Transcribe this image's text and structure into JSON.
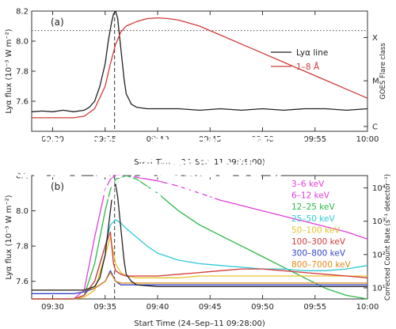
{
  "chart_data": [
    {
      "type": "line",
      "panel_label": "(a)",
      "ylabel": "Lyα flux (10⁻³ W m⁻²)",
      "y2label": "GOES Flare class",
      "xlabel": "Start Time (24–Sep–11 09:28:00)",
      "x_ticks": [
        "09:30",
        "09:35",
        "09:40",
        "09:45",
        "09:50",
        "09:55",
        "10:00"
      ],
      "xlim": [
        0,
        32
      ],
      "ylim": [
        7.4,
        8.2
      ],
      "y_ticks": [
        7.6,
        7.8,
        8.0,
        8.2
      ],
      "y2_ticks": [
        "X",
        "M",
        "C"
      ],
      "dotted_hline": 8.07,
      "dashed_vline_x": 7.9,
      "legend": [
        {
          "label": "Lyα line",
          "color": "#222222"
        },
        {
          "label": "1–8 Å",
          "color": "#d23a3a"
        }
      ],
      "series": [
        {
          "name": "Lyα line",
          "color": "#222222",
          "x": [
            0,
            1,
            2,
            3,
            4,
            5,
            5.5,
            6,
            6.5,
            7,
            7.3,
            7.6,
            7.8,
            8,
            8.2,
            8.5,
            8.8,
            9,
            9.5,
            10,
            11,
            12,
            14,
            16,
            18,
            20,
            22,
            24,
            26,
            28,
            30,
            32
          ],
          "y": [
            7.53,
            7.535,
            7.53,
            7.54,
            7.53,
            7.54,
            7.56,
            7.6,
            7.7,
            7.85,
            8.0,
            8.12,
            8.18,
            8.2,
            8.15,
            7.95,
            7.75,
            7.65,
            7.58,
            7.56,
            7.55,
            7.55,
            7.55,
            7.54,
            7.55,
            7.54,
            7.55,
            7.54,
            7.55,
            7.55,
            7.54,
            7.55
          ]
        },
        {
          "name": "1–8 Å",
          "color": "#d23a3a",
          "x": [
            0,
            2,
            4,
            5,
            6,
            7,
            7.5,
            8,
            8.5,
            9,
            10,
            11,
            12,
            13,
            14,
            16,
            18,
            20,
            22,
            24,
            26,
            28,
            30,
            32
          ],
          "y": [
            7.49,
            7.49,
            7.49,
            7.5,
            7.55,
            7.7,
            7.85,
            7.98,
            8.06,
            8.1,
            8.13,
            8.15,
            8.155,
            8.15,
            8.14,
            8.1,
            8.04,
            7.98,
            7.92,
            7.86,
            7.8,
            7.74,
            7.68,
            7.62
          ]
        }
      ]
    },
    {
      "type": "line",
      "panel_label": "(b)",
      "ylabel": "Lyα flux (10⁻³ W m⁻²)",
      "y2label": "Corrected Count Rate (s⁻¹ detector⁻¹)",
      "xlabel": "Start Time (24–Sep–11 09:28:00)",
      "x_ticks": [
        "09:30",
        "09:35",
        "09:40",
        "09:45",
        "09:50",
        "09:55",
        "10:00"
      ],
      "xlim": [
        0,
        32
      ],
      "ylim": [
        7.5,
        8.2
      ],
      "y_ticks": [
        7.6,
        7.8,
        8.0,
        8.2
      ],
      "y2_ticks": [
        "10⁴",
        "10³",
        "10²",
        "10¹"
      ],
      "dashed_vline_x": 7.9,
      "legend": [
        {
          "label": "3–6 keV",
          "color": "#e040d8"
        },
        {
          "label": "6–12 keV",
          "color": "#e040d8"
        },
        {
          "label": "12–25 keV",
          "color": "#2bb84a"
        },
        {
          "label": "25–50 keV",
          "color": "#2ec9d6"
        },
        {
          "label": "50–100 keV",
          "color": "#e6c229"
        },
        {
          "label": "100–300 keV",
          "color": "#d23a3a"
        },
        {
          "label": "300–800 keV",
          "color": "#3446c9"
        },
        {
          "label": "800–7000 keV",
          "color": "#e08a1a"
        }
      ],
      "series": [
        {
          "name": "6–12 keV",
          "color": "#e040d8",
          "x": [
            0,
            2,
            4,
            5,
            6,
            7,
            7.5,
            8,
            9,
            10,
            12,
            14,
            16,
            18,
            20,
            22,
            24,
            26,
            28,
            30,
            32
          ],
          "y": [
            7.5,
            7.5,
            7.5,
            7.55,
            7.85,
            8.12,
            8.18,
            8.2,
            8.2,
            8.19,
            8.17,
            8.14,
            8.1,
            8.06,
            8.03,
            8.0,
            7.97,
            7.94,
            7.91,
            7.88,
            7.84
          ]
        },
        {
          "name": "12–25 keV",
          "color": "#2bb84a",
          "x": [
            0,
            4,
            5,
            6,
            7,
            7.5,
            8,
            9,
            10,
            12,
            14,
            16,
            18,
            20,
            22,
            24,
            26,
            28,
            30,
            32
          ],
          "y": [
            7.5,
            7.5,
            7.52,
            7.7,
            8.0,
            8.12,
            8.18,
            8.2,
            8.18,
            8.1,
            8.0,
            7.92,
            7.86,
            7.8,
            7.74,
            7.68,
            7.62,
            7.56,
            7.52,
            7.5
          ]
        },
        {
          "name": "25–50 keV",
          "color": "#2ec9d6",
          "x": [
            0,
            4,
            5,
            6,
            7,
            7.5,
            8,
            8.5,
            9,
            10,
            11,
            12,
            14,
            16,
            18,
            20,
            22,
            24,
            26,
            28,
            30,
            32
          ],
          "y": [
            7.5,
            7.5,
            7.52,
            7.6,
            7.8,
            7.92,
            7.95,
            7.93,
            7.9,
            7.85,
            7.8,
            7.76,
            7.72,
            7.7,
            7.69,
            7.68,
            7.67,
            7.67,
            7.66,
            7.66,
            7.67,
            7.69
          ]
        },
        {
          "name": "50–100 keV",
          "color": "#e6c229",
          "x": [
            0,
            4,
            5,
            6,
            7,
            7.5,
            8,
            8.5,
            9,
            10,
            12,
            14,
            16,
            18,
            20,
            22,
            24,
            26,
            28,
            30,
            32
          ],
          "y": [
            7.5,
            7.5,
            7.51,
            7.55,
            7.75,
            7.85,
            7.7,
            7.65,
            7.63,
            7.62,
            7.62,
            7.62,
            7.63,
            7.63,
            7.63,
            7.63,
            7.63,
            7.63,
            7.63,
            7.63,
            7.63
          ]
        },
        {
          "name": "100–300 keV",
          "color": "#d23a3a",
          "x": [
            0,
            4,
            5,
            6,
            7,
            7.5,
            7.8,
            8,
            8.5,
            9,
            10,
            12,
            14,
            16,
            18,
            20,
            22,
            24,
            26,
            28,
            30,
            32
          ],
          "y": [
            7.5,
            7.5,
            7.52,
            7.6,
            7.8,
            7.88,
            7.7,
            7.66,
            7.64,
            7.63,
            7.63,
            7.63,
            7.64,
            7.65,
            7.66,
            7.67,
            7.67,
            7.66,
            7.65,
            7.64,
            7.63,
            7.62
          ]
        },
        {
          "name": "300–800 keV",
          "color": "#3446c9",
          "x": [
            0,
            4,
            5,
            6,
            7,
            7.5,
            8,
            8.5,
            9,
            10,
            12,
            14,
            16,
            18,
            20,
            22,
            24,
            26,
            28,
            30,
            32
          ],
          "y": [
            7.53,
            7.53,
            7.54,
            7.56,
            7.6,
            7.66,
            7.6,
            7.58,
            7.58,
            7.58,
            7.58,
            7.58,
            7.58,
            7.58,
            7.58,
            7.58,
            7.58,
            7.58,
            7.58,
            7.58,
            7.58
          ]
        },
        {
          "name": "800–7000 keV",
          "color": "#e08a1a",
          "x": [
            0,
            4,
            5,
            6,
            7,
            7.5,
            8,
            8.5,
            9,
            10,
            12,
            14,
            16,
            18,
            20,
            22,
            24,
            26,
            28,
            30,
            32
          ],
          "y": [
            7.55,
            7.55,
            7.55,
            7.56,
            7.6,
            7.65,
            7.6,
            7.59,
            7.59,
            7.59,
            7.59,
            7.59,
            7.59,
            7.59,
            7.59,
            7.59,
            7.59,
            7.59,
            7.59,
            7.59,
            7.59
          ]
        },
        {
          "name": "Lyα line",
          "color": "#222222",
          "x": [
            0,
            4,
            5,
            6,
            6.5,
            7,
            7.3,
            7.6,
            7.8,
            8,
            8.2,
            8.5,
            8.8,
            9,
            9.5,
            10,
            12,
            16,
            20,
            24,
            28,
            32
          ],
          "y": [
            7.55,
            7.55,
            7.55,
            7.57,
            7.62,
            7.75,
            7.9,
            8.05,
            8.13,
            8.15,
            8.08,
            7.9,
            7.72,
            7.64,
            7.6,
            7.58,
            7.57,
            7.57,
            7.57,
            7.57,
            7.57,
            7.57
          ]
        }
      ]
    }
  ],
  "overlay": {
    "line1": "问答咨询平台,科学知识问答题及答",
    "line2": "案,答题小程序,百度知道合伙人,",
    "line3": "生活小常识100条问答"
  }
}
